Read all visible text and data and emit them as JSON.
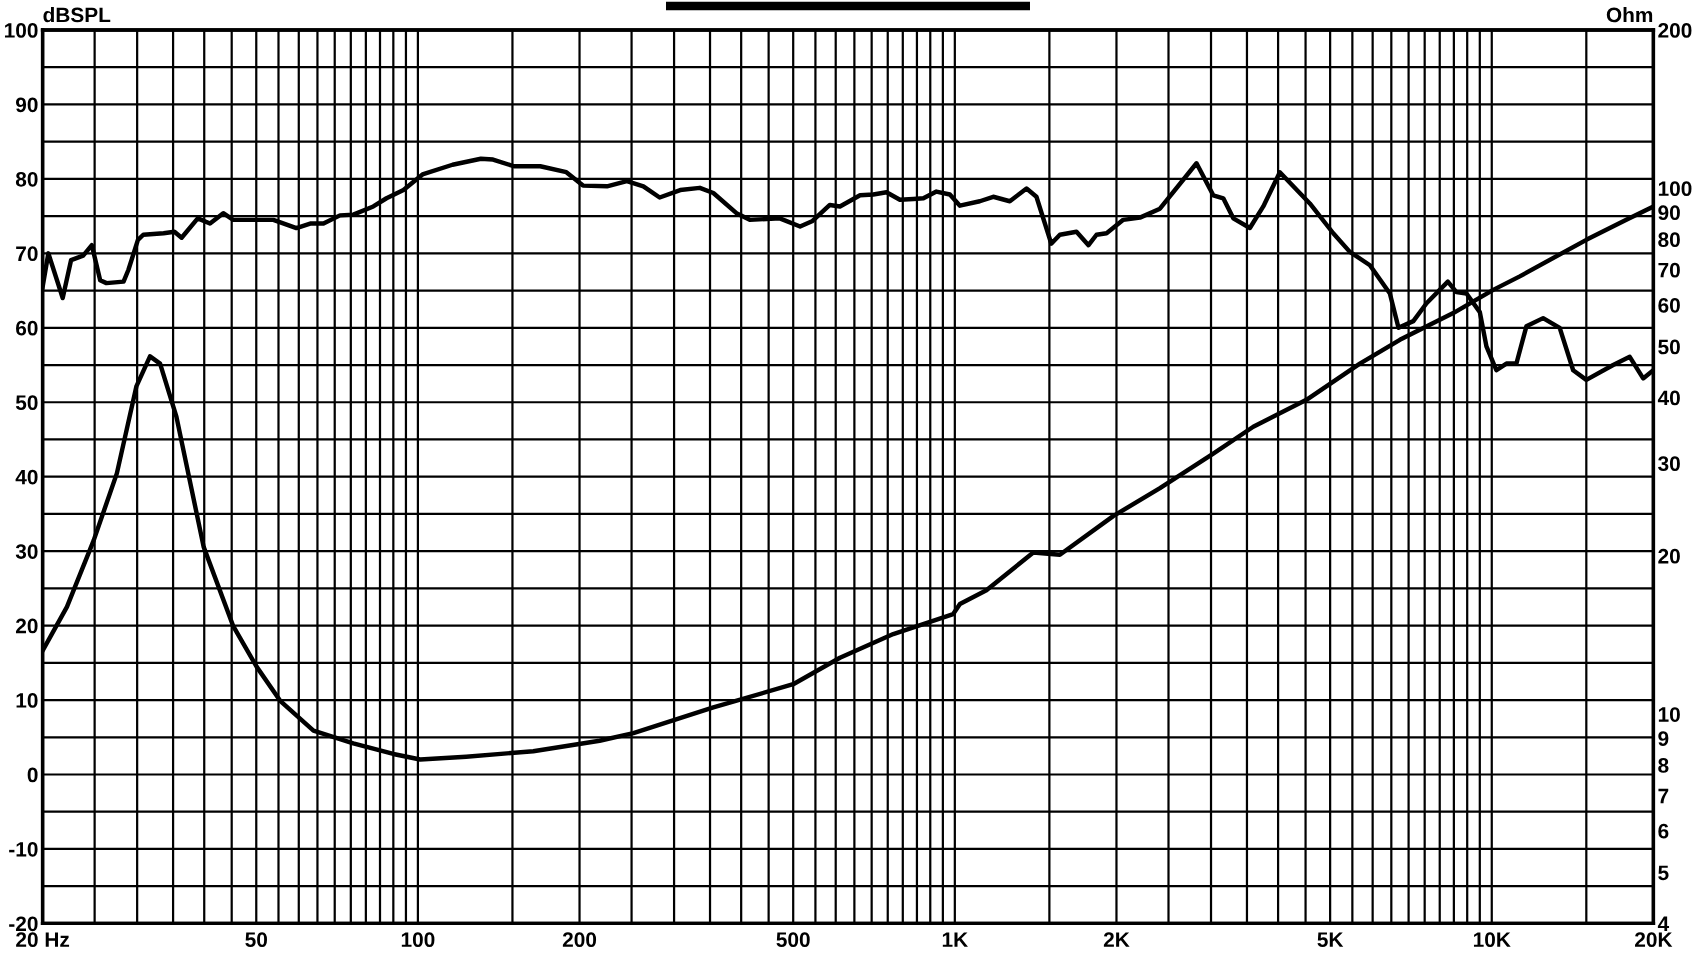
{
  "chart_data": [
    {
      "type": "line",
      "ylabel": "dBSPL",
      "log": "x",
      "grid": true,
      "xlim": [
        20,
        20000
      ],
      "xticks": [
        {
          "value": 20,
          "label": "20 Hz"
        },
        {
          "value": 25,
          "label": null
        },
        {
          "value": 30,
          "label": null
        },
        {
          "value": 35,
          "label": null
        },
        {
          "value": 40,
          "label": null
        },
        {
          "value": 45,
          "label": null
        },
        50,
        {
          "value": 55,
          "label": null
        },
        {
          "value": 60,
          "label": null
        },
        {
          "value": 65,
          "label": null
        },
        {
          "value": 70,
          "label": null
        },
        {
          "value": 75,
          "label": null
        },
        {
          "value": 80,
          "label": null
        },
        {
          "value": 85,
          "label": null
        },
        {
          "value": 90,
          "label": null
        },
        {
          "value": 95,
          "label": null
        },
        100,
        {
          "value": 150,
          "label": null
        },
        200,
        {
          "value": 250,
          "label": null
        },
        {
          "value": 300,
          "label": null
        },
        {
          "value": 350,
          "label": null
        },
        {
          "value": 400,
          "label": null
        },
        {
          "value": 450,
          "label": null
        },
        500,
        {
          "value": 550,
          "label": null
        },
        {
          "value": 600,
          "label": null
        },
        {
          "value": 650,
          "label": null
        },
        {
          "value": 700,
          "label": null
        },
        {
          "value": 750,
          "label": null
        },
        {
          "value": 800,
          "label": null
        },
        {
          "value": 850,
          "label": null
        },
        {
          "value": 900,
          "label": null
        },
        {
          "value": 950,
          "label": null
        },
        {
          "value": 1000,
          "label": "1K"
        },
        {
          "value": 1500,
          "label": null
        },
        {
          "value": 2000,
          "label": "2K"
        },
        {
          "value": 2500,
          "label": null
        },
        {
          "value": 3000,
          "label": null
        },
        {
          "value": 3500,
          "label": null
        },
        {
          "value": 4000,
          "label": null
        },
        {
          "value": 4500,
          "label": null
        },
        {
          "value": 5000,
          "label": "5K"
        },
        {
          "value": 5500,
          "label": null
        },
        {
          "value": 6000,
          "label": null
        },
        {
          "value": 6500,
          "label": null
        },
        {
          "value": 7000,
          "label": null
        },
        {
          "value": 7500,
          "label": null
        },
        {
          "value": 8000,
          "label": null
        },
        {
          "value": 8500,
          "label": null
        },
        {
          "value": 9000,
          "label": null
        },
        {
          "value": 9500,
          "label": null
        },
        {
          "value": 10000,
          "label": "10K"
        },
        {
          "value": 15000,
          "label": null
        },
        {
          "value": 20000,
          "label": "20K"
        }
      ],
      "ylim": [
        -20,
        100
      ],
      "yticks": [
        -20,
        {
          "value": -15,
          "label": null
        },
        -10,
        {
          "value": -5,
          "label": null
        },
        0,
        {
          "value": 5,
          "label": null
        },
        10,
        {
          "value": 15,
          "label": null
        },
        20,
        {
          "value": 25,
          "label": null
        },
        30,
        {
          "value": 35,
          "label": null
        },
        40,
        {
          "value": 45,
          "label": null
        },
        50,
        {
          "value": 55,
          "label": null
        },
        60,
        {
          "value": 65,
          "label": null
        },
        70,
        {
          "value": 75,
          "label": null
        },
        80,
        {
          "value": 85,
          "label": null
        },
        90,
        {
          "value": 95,
          "label": null
        },
        100
      ],
      "series": [
        {
          "color": "#000000",
          "x": [
            20,
            20.5,
            21.8,
            22.6,
            23.8,
            24.7,
            25.6,
            26.3,
            28.3,
            28.9,
            30.1,
            30.8,
            33.6,
            35.2,
            36.3,
            38.9,
            41,
            43.4,
            45.3,
            49.4,
            53.8,
            59.4,
            63,
            66.7,
            71.6,
            75.8,
            82.6,
            87.4,
            94,
            102,
            116,
            131,
            138,
            151,
            169,
            189,
            203,
            225,
            245,
            263,
            282,
            308,
            335,
            355,
            392,
            415,
            472,
            515,
            542,
            585,
            611,
            666,
            705,
            746,
            790,
            837,
            874,
            924,
            979,
            1022,
            1113,
            1179,
            1266,
            1360,
            1419,
            1512,
            1569,
            1685,
            1774,
            1836,
            1917,
            2059,
            2212,
            2410,
            2819,
            3029,
            3162,
            3301,
            3544,
            3754,
            4030,
            4583,
            5067,
            5441,
            5930,
            6460,
            6703,
            7144,
            7560,
            8283,
            8594,
            8972,
            9501,
            9774,
            10200,
            10648,
            11115,
            11601,
            12463,
            13383,
            14177,
            15001,
            16830,
            18071,
            19141,
            20000
          ],
          "values": [
            65.5,
            70.0,
            64.0,
            69.1,
            69.7,
            71.1,
            66.4,
            66.0,
            66.2,
            67.8,
            71.8,
            72.5,
            72.7,
            72.9,
            72.1,
            74.7,
            74.0,
            75.4,
            74.5,
            74.5,
            74.5,
            73.4,
            74.0,
            74.0,
            75.1,
            75.2,
            76.3,
            77.4,
            78.5,
            80.6,
            81.9,
            82.7,
            82.6,
            81.7,
            81.7,
            80.9,
            79.1,
            79.0,
            79.7,
            79.0,
            77.5,
            78.5,
            78.8,
            78.1,
            75.4,
            74.5,
            74.7,
            73.6,
            74.3,
            76.5,
            76.3,
            77.8,
            77.9,
            78.2,
            77.2,
            77.3,
            77.4,
            78.3,
            77.9,
            76.4,
            77.0,
            77.6,
            77.0,
            78.7,
            77.6,
            71.3,
            72.5,
            72.9,
            71.1,
            72.5,
            72.7,
            74.5,
            74.8,
            76.0,
            82.1,
            77.8,
            77.4,
            74.7,
            73.4,
            76.3,
            80.9,
            76.7,
            72.7,
            70.2,
            68.4,
            64.6,
            60.0,
            60.9,
            63.3,
            66.2,
            64.8,
            64.6,
            62.1,
            57.5,
            54.3,
            55.2,
            55.2,
            60.2,
            61.3,
            60.0,
            54.3,
            53.0,
            55.0,
            56.1,
            53.2,
            54.3
          ]
        }
      ]
    },
    {
      "type": "line",
      "ylabel": "Ohm",
      "log": "xy",
      "tick_labels": "y",
      "xlim": [
        20,
        20000
      ],
      "ylim": [
        4,
        200
      ],
      "yticks": [
        4,
        5,
        6,
        7,
        8,
        9,
        10,
        20,
        30,
        40,
        50,
        60,
        70,
        80,
        90,
        100,
        200
      ],
      "series": [
        {
          "color": "#000000",
          "x": [
            20,
            22.2,
            24.9,
            27.5,
            29.9,
            31.7,
            33.1,
            35.5,
            39.9,
            45.3,
            50.1,
            55.4,
            63.9,
            75.8,
            90,
            101,
            123,
            164,
            218,
            252,
            355,
            500,
            611,
            768,
            993,
            1022,
            1145,
            1400,
            1569,
            1972,
            2410,
            3029,
            3596,
            4517,
            5680,
            6743,
            8478,
            10062,
            11277,
            15001,
            17808,
            20000
          ],
          "values": [
            13.2,
            16.0,
            21.4,
            28.7,
            42.0,
            47.9,
            46.4,
            36.8,
            20.8,
            14.7,
            12.3,
            10.6,
            9.3,
            8.8,
            8.4,
            8.2,
            8.3,
            8.5,
            8.9,
            9.2,
            10.3,
            11.4,
            12.8,
            14.2,
            15.5,
            16.2,
            17.2,
            20.3,
            20.1,
            23.8,
            26.9,
            31.3,
            35.2,
            39.6,
            46.4,
            51.5,
            57.9,
            64.1,
            68.0,
            79.8,
            87.1,
            92.3
          ]
        }
      ]
    }
  ]
}
